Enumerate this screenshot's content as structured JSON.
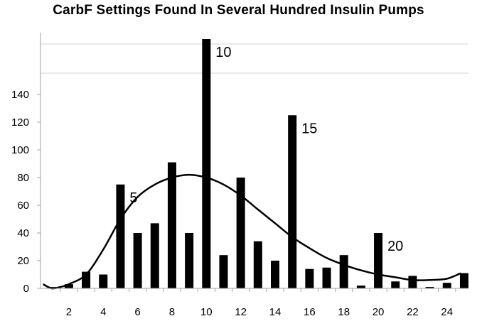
{
  "chart_data": {
    "type": "bar",
    "title": "CarbF Settings Found In Several Hundred Insulin Pumps",
    "xlabel": "",
    "ylabel": "",
    "x": [
      1,
      2,
      3,
      4,
      5,
      6,
      7,
      8,
      9,
      10,
      11,
      12,
      13,
      14,
      15,
      16,
      17,
      18,
      19,
      20,
      21,
      22,
      23,
      24,
      25
    ],
    "values": [
      1,
      3,
      12,
      10,
      75,
      40,
      47,
      91,
      40,
      184,
      24,
      80,
      34,
      20,
      125,
      14,
      15,
      24,
      2,
      40,
      5,
      9,
      1,
      4,
      11
    ],
    "xlim": [
      0.35,
      25.25
    ],
    "ylim": [
      0,
      180
    ],
    "x_ticks": [
      2,
      4,
      6,
      8,
      10,
      12,
      14,
      16,
      18,
      20,
      22,
      24
    ],
    "y_ticks": [
      0,
      20,
      40,
      60,
      80,
      100,
      120,
      140
    ],
    "grid": false,
    "trend_line": {
      "type": "smoothed curve",
      "points": [
        [
          0.5,
          3
        ],
        [
          1,
          0
        ],
        [
          1.5,
          1
        ],
        [
          2,
          3
        ],
        [
          3,
          10
        ],
        [
          4,
          28
        ],
        [
          5,
          50
        ],
        [
          6,
          66
        ],
        [
          7,
          75
        ],
        [
          8,
          80
        ],
        [
          9,
          82
        ],
        [
          10,
          80
        ],
        [
          11,
          75
        ],
        [
          12,
          67
        ],
        [
          13,
          57
        ],
        [
          14,
          47
        ],
        [
          15,
          37
        ],
        [
          16,
          29
        ],
        [
          17,
          22
        ],
        [
          18,
          17
        ],
        [
          19,
          13
        ],
        [
          20,
          10
        ],
        [
          21,
          8
        ],
        [
          22,
          6
        ],
        [
          23,
          6
        ],
        [
          24,
          7
        ],
        [
          24.8,
          11
        ]
      ]
    },
    "annotations": [
      {
        "text": "5",
        "x": 5
      },
      {
        "text": "10",
        "x": 10
      },
      {
        "text": "15",
        "x": 15
      },
      {
        "text": "20",
        "x": 20
      }
    ]
  }
}
